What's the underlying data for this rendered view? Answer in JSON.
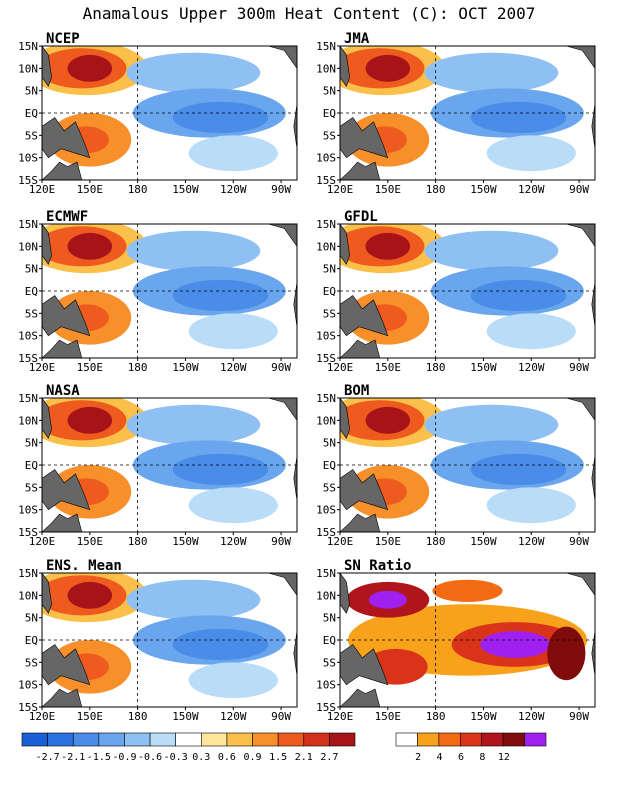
{
  "title": "Anamalous Upper 300m Heat Content (C): OCT 2007",
  "colors": {
    "land": "#666666",
    "anomaly_scale": [
      "#1a5fd6",
      "#2c73e0",
      "#4a8de8",
      "#6aa6ee",
      "#8fc0f3",
      "#b9dcf8",
      "#ffffff",
      "#ffe69a",
      "#fbc04a",
      "#f7902a",
      "#ef5a1e",
      "#d3321a",
      "#a6141a",
      "#7e0b0b",
      "#a020f0"
    ],
    "sn_scale": [
      "#ffffff",
      "#f8a21b",
      "#f26a12",
      "#d9341a",
      "#b0141c",
      "#7f0b0b",
      "#a020f0"
    ]
  },
  "colorbars": {
    "anomaly_labels": [
      "-2.7",
      "-2.1",
      "-1.5",
      "-0.9",
      "-0.6",
      "-0.3",
      "0.3",
      "0.6",
      "0.9",
      "1.5",
      "2.1",
      "2.7"
    ],
    "sn_labels": [
      "2",
      "4",
      "6",
      "8",
      "12"
    ]
  },
  "chart_data": [
    {
      "type": "heatmap",
      "title": "NCEP",
      "x_ticks": [
        "120E",
        "150E",
        "180",
        "150W",
        "120W",
        "90W"
      ],
      "y_ticks": [
        "15N",
        "10N",
        "5N",
        "EQ",
        "5S",
        "10S",
        "15S"
      ]
    },
    {
      "type": "heatmap",
      "title": "JMA",
      "x_ticks": [
        "120E",
        "150E",
        "180",
        "150W",
        "120W",
        "90W"
      ],
      "y_ticks": [
        "15N",
        "10N",
        "5N",
        "EQ",
        "5S",
        "10S",
        "15S"
      ]
    },
    {
      "type": "heatmap",
      "title": "ECMWF",
      "x_ticks": [
        "120E",
        "150E",
        "180",
        "150W",
        "120W",
        "90W"
      ],
      "y_ticks": [
        "15N",
        "10N",
        "5N",
        "EQ",
        "5S",
        "10S",
        "15S"
      ]
    },
    {
      "type": "heatmap",
      "title": "GFDL",
      "x_ticks": [
        "120E",
        "150E",
        "180",
        "150W",
        "120W",
        "90W"
      ],
      "y_ticks": [
        "15N",
        "10N",
        "5N",
        "EQ",
        "5S",
        "10S",
        "15S"
      ]
    },
    {
      "type": "heatmap",
      "title": "NASA",
      "x_ticks": [
        "120E",
        "150E",
        "180",
        "150W",
        "120W",
        "90W"
      ],
      "y_ticks": [
        "15N",
        "10N",
        "5N",
        "EQ",
        "5S",
        "10S",
        "15S"
      ]
    },
    {
      "type": "heatmap",
      "title": "BOM",
      "x_ticks": [
        "120E",
        "150E",
        "180",
        "150W",
        "120W",
        "90W"
      ],
      "y_ticks": [
        "15N",
        "10N",
        "5N",
        "EQ",
        "5S",
        "10S",
        "15S"
      ]
    },
    {
      "type": "heatmap",
      "title": "ENS. Mean",
      "x_ticks": [
        "120E",
        "150E",
        "180",
        "150W",
        "120W",
        "90W"
      ],
      "y_ticks": [
        "15N",
        "10N",
        "5N",
        "EQ",
        "5S",
        "10S",
        "15S"
      ]
    },
    {
      "type": "heatmap",
      "title": "SN Ratio",
      "x_ticks": [
        "120E",
        "150E",
        "180",
        "150W",
        "120W",
        "90W"
      ],
      "y_ticks": [
        "15N",
        "10N",
        "5N",
        "EQ",
        "5S",
        "10S",
        "15S"
      ]
    }
  ]
}
